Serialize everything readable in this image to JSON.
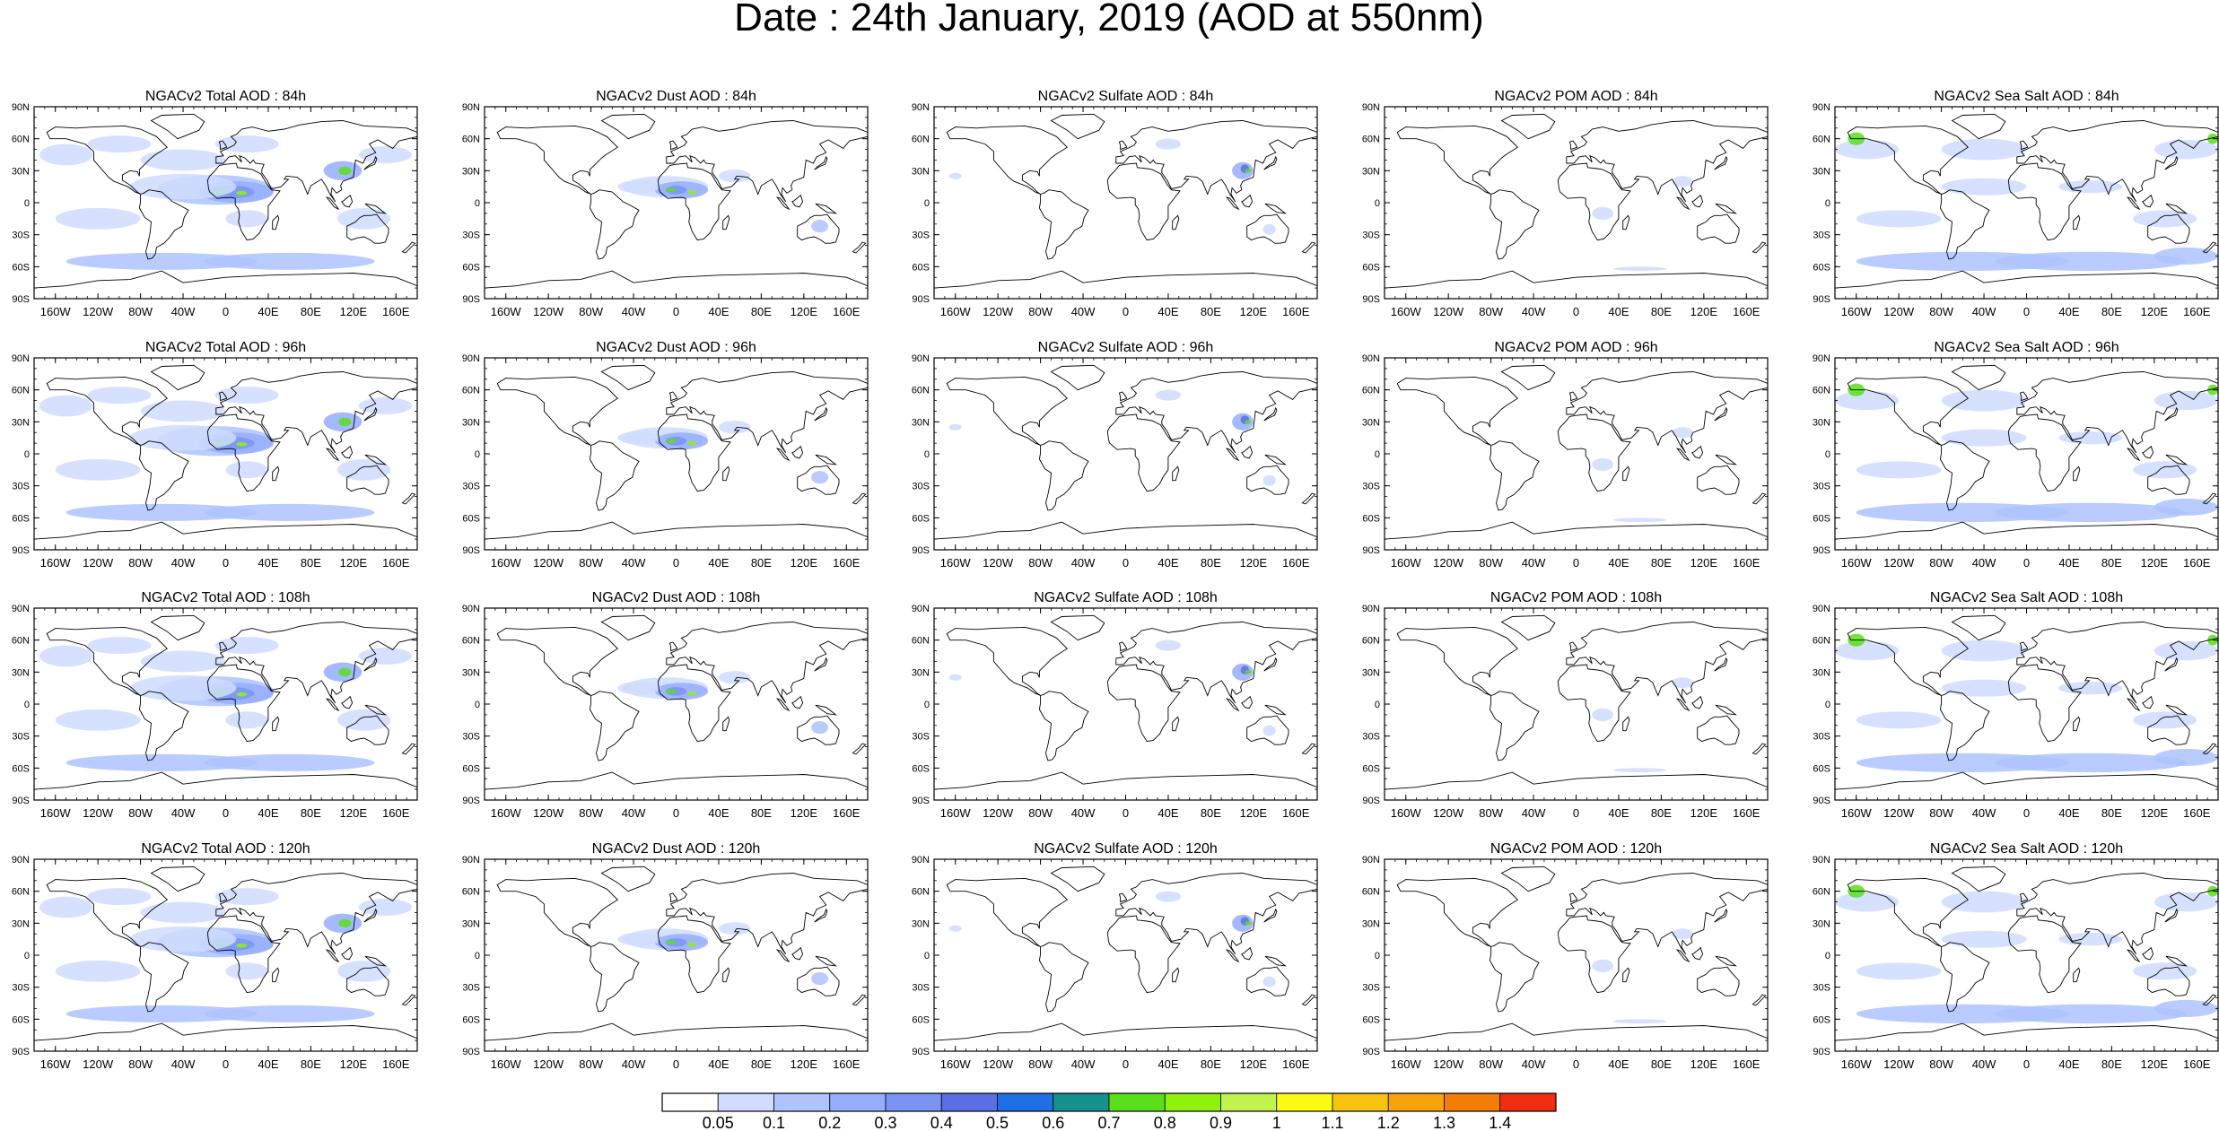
{
  "title": "Date : 24th January, 2019 (AOD at 550nm)",
  "columns": [
    {
      "label": "NGACv2 Total AOD",
      "field": "total"
    },
    {
      "label": "NGACv2 Dust AOD",
      "field": "dust"
    },
    {
      "label": "NGACv2 Sulfate AOD",
      "field": "sulfate"
    },
    {
      "label": "NGACv2 POM AOD",
      "field": "pom"
    },
    {
      "label": "NGACv2 Sea Salt AOD",
      "field": "seasalt"
    }
  ],
  "panels": [
    [
      "NGACv2 Total AOD : 84h",
      "NGACv2 Dust AOD : 84h",
      "NGACv2 Sulfate AOD : 84h",
      "NGACv2 POM AOD : 84h",
      "NGACv2 Sea Salt AOD : 84h"
    ],
    [
      "NGACv2 Total AOD : 96h",
      "NGACv2 Dust AOD : 96h",
      "NGACv2 Sulfate AOD : 96h",
      "NGACv2 POM AOD : 96h",
      "NGACv2 Sea Salt AOD : 96h"
    ],
    [
      "NGACv2 Total AOD : 108h",
      "NGACv2 Dust AOD : 108h",
      "NGACv2 Sulfate AOD : 108h",
      "NGACv2 POM AOD : 108h",
      "NGACv2 Sea Salt AOD : 108h"
    ],
    [
      "NGACv2 Total AOD : 120h",
      "NGACv2 Dust AOD : 120h",
      "NGACv2 Sulfate AOD : 120h",
      "NGACv2 POM AOD : 120h",
      "NGACv2 Sea Salt  AOD : 120h"
    ]
  ],
  "lat_ticks": [
    "90N",
    "60N",
    "30N",
    "0",
    "30S",
    "60S",
    "90S"
  ],
  "lon_ticks": [
    "160W",
    "120W",
    "80W",
    "40W",
    "0",
    "40E",
    "80E",
    "120E",
    "160E"
  ],
  "colorbar": {
    "labels": [
      "0.05",
      "0.1",
      "0.2",
      "0.3",
      "0.4",
      "0.5",
      "0.6",
      "0.7",
      "0.8",
      "0.9",
      "1",
      "1.1",
      "1.2",
      "1.3",
      "1.4"
    ],
    "colors": [
      "#ffffff",
      "#cfdcff",
      "#aec3ff",
      "#95adff",
      "#7b94f4",
      "#5a6ee6",
      "#1f6fe6",
      "#13928f",
      "#5adf1b",
      "#8ff208",
      "#c2f24c",
      "#fbfc11",
      "#f8c30c",
      "#f8a30a",
      "#f37d07",
      "#ef2e12"
    ]
  },
  "legend_description": "AOD at 550nm"
}
